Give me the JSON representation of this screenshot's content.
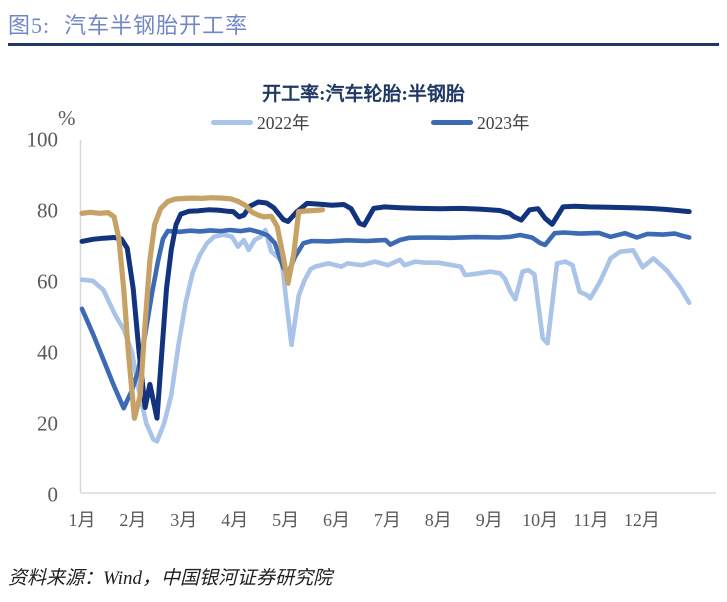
{
  "figure": {
    "label": "图5:",
    "title": "汽车半钢胎开工率"
  },
  "chart": {
    "title": "开工率:汽车轮胎:半钢胎"
  },
  "legend": [
    {
      "label": "2022年",
      "color": "#a9c4e8"
    },
    {
      "label": "2023年",
      "color": "#3c6ab5"
    }
  ],
  "source": "资料来源：Wind，中国银河证券研究院",
  "colors": {
    "figure_title": "#7287c6",
    "divider": "#1f3864",
    "chart_title": "#1f3864",
    "axis_line": "#d9d9d9",
    "axis_label": "#595959"
  },
  "chart_data": {
    "type": "line",
    "title": "开工率:汽车轮胎:半钢胎",
    "x_axis": {
      "categories": [
        "1月",
        "2月",
        "3月",
        "4月",
        "5月",
        "6月",
        "7月",
        "8月",
        "9月",
        "10月",
        "11月",
        "12月"
      ],
      "unit": "week-of-year"
    },
    "y_axis": {
      "min": 0,
      "max": 100,
      "ticks": [
        0,
        20,
        40,
        60,
        80,
        100
      ],
      "unit": "%"
    },
    "legend_position": "top",
    "grid": false,
    "series": [
      {
        "name": "2022年",
        "in_legend": true,
        "color": "#a9c4e8",
        "width": 4.6,
        "points": [
          [
            1,
            60.5
          ],
          [
            1.9,
            60.2
          ],
          [
            2.8,
            57.6
          ],
          [
            3.8,
            50.5
          ],
          [
            4.5,
            46.5
          ],
          [
            5.2,
            40
          ],
          [
            5.8,
            29
          ],
          [
            6.4,
            20
          ],
          [
            7.0,
            15.5
          ],
          [
            7.3,
            15.0
          ],
          [
            7.9,
            20
          ],
          [
            8.5,
            28
          ],
          [
            9.1,
            42
          ],
          [
            9.7,
            54
          ],
          [
            10.3,
            62.5
          ],
          [
            10.9,
            67.5
          ],
          [
            11.5,
            70.8
          ],
          [
            12.1,
            72.6
          ],
          [
            12.9,
            73.2
          ],
          [
            13.6,
            72.6
          ],
          [
            14.1,
            69.8
          ],
          [
            14.6,
            71.7
          ],
          [
            15.0,
            68.9
          ],
          [
            15.5,
            71.7
          ],
          [
            16.0,
            72.6
          ],
          [
            16.4,
            74.5
          ],
          [
            16.9,
            68.4
          ],
          [
            17.4,
            67.0
          ],
          [
            17.8,
            65.6
          ],
          [
            18.1,
            56.2
          ],
          [
            18.6,
            42.1
          ],
          [
            19.2,
            56
          ],
          [
            19.7,
            60.4
          ],
          [
            20.2,
            63.5
          ],
          [
            20.6,
            64.2
          ],
          [
            21.7,
            65.1
          ],
          [
            22.8,
            64.2
          ],
          [
            23.3,
            65.1
          ],
          [
            24.5,
            64.6
          ],
          [
            25.6,
            65.6
          ],
          [
            26.7,
            64.6
          ],
          [
            27.7,
            66.1
          ],
          [
            28.1,
            64.6
          ],
          [
            29.0,
            65.6
          ],
          [
            29.8,
            65.3
          ],
          [
            30.9,
            65.3
          ],
          [
            32.8,
            64.2
          ],
          [
            33.2,
            61.8
          ],
          [
            34.4,
            62.3
          ],
          [
            35.3,
            62.8
          ],
          [
            36.1,
            62.3
          ],
          [
            36.5,
            60.9
          ],
          [
            37.0,
            57.1
          ],
          [
            37.4,
            55.0
          ],
          [
            38.0,
            62.8
          ],
          [
            38.5,
            63.2
          ],
          [
            39.0,
            62
          ],
          [
            39.7,
            44.0
          ],
          [
            40.1,
            42.6
          ],
          [
            40.9,
            65.1
          ],
          [
            41.6,
            65.6
          ],
          [
            42.2,
            64.6
          ],
          [
            42.8,
            57.1
          ],
          [
            43.4,
            56.2
          ],
          [
            43.7,
            55.3
          ],
          [
            44.5,
            59.9
          ],
          [
            45.4,
            66.5
          ],
          [
            46.2,
            68.4
          ],
          [
            47.3,
            68.8
          ],
          [
            48.1,
            64.0
          ],
          [
            49.0,
            66.5
          ],
          [
            50.1,
            63.2
          ],
          [
            51.2,
            58.5
          ],
          [
            52.0,
            54.0
          ]
        ]
      },
      {
        "name": "2023年",
        "in_legend": true,
        "color": "#3c6ab5",
        "width": 4.6,
        "points": [
          [
            1,
            52.3
          ],
          [
            1.9,
            45.4
          ],
          [
            2.8,
            38
          ],
          [
            3.7,
            30.5
          ],
          [
            4.5,
            24.3
          ],
          [
            5.2,
            29.4
          ],
          [
            5.7,
            34.6
          ],
          [
            6.3,
            45
          ],
          [
            6.9,
            57
          ],
          [
            7.4,
            66
          ],
          [
            7.8,
            72
          ],
          [
            8.2,
            74.2
          ],
          [
            9.2,
            74.0
          ],
          [
            10.1,
            74.3
          ],
          [
            10.9,
            74.1
          ],
          [
            11.8,
            74.4
          ],
          [
            12.6,
            74.2
          ],
          [
            13.4,
            74.5
          ],
          [
            14.3,
            74.2
          ],
          [
            15.1,
            74.6
          ],
          [
            15.9,
            73.9
          ],
          [
            16.6,
            73.0
          ],
          [
            17.2,
            70.8
          ],
          [
            17.9,
            64
          ],
          [
            18.3,
            62.3
          ],
          [
            18.9,
            67
          ],
          [
            19.6,
            70.8
          ],
          [
            20.3,
            71.4
          ],
          [
            21.7,
            71.3
          ],
          [
            23.3,
            71.6
          ],
          [
            24.9,
            71.4
          ],
          [
            26.5,
            71.7
          ],
          [
            26.9,
            70.4
          ],
          [
            27.7,
            71.7
          ],
          [
            28.5,
            72.3
          ],
          [
            30,
            72.4
          ],
          [
            32,
            72.3
          ],
          [
            34,
            72.5
          ],
          [
            36,
            72.4
          ],
          [
            37.0,
            72.6
          ],
          [
            37.8,
            73.1
          ],
          [
            38.8,
            72.4
          ],
          [
            39.5,
            70.8
          ],
          [
            39.9,
            70.3
          ],
          [
            40.7,
            73.6
          ],
          [
            41.5,
            73.8
          ],
          [
            42.8,
            73.5
          ],
          [
            44.4,
            73.7
          ],
          [
            45.4,
            72.6
          ],
          [
            46.6,
            73.6
          ],
          [
            47.6,
            72.4
          ],
          [
            48.5,
            73.4
          ],
          [
            49.8,
            73.2
          ],
          [
            50.8,
            73.5
          ],
          [
            51.4,
            72.9
          ],
          [
            52.0,
            72.4
          ]
        ]
      },
      {
        "name": "dark-blue-series",
        "in_legend": false,
        "color": "#12337e",
        "width": 5,
        "points": [
          [
            1,
            71.3
          ],
          [
            1.9,
            71.9
          ],
          [
            2.8,
            72.2
          ],
          [
            3.7,
            72.4
          ],
          [
            4.3,
            72.0
          ],
          [
            4.8,
            69.4
          ],
          [
            5.3,
            58
          ],
          [
            5.8,
            40
          ],
          [
            6.3,
            24.5
          ],
          [
            6.7,
            31
          ],
          [
            7.3,
            21.5
          ],
          [
            7.7,
            40
          ],
          [
            8.1,
            58
          ],
          [
            8.5,
            69
          ],
          [
            8.9,
            76
          ],
          [
            9.3,
            79.0
          ],
          [
            10.0,
            79.8
          ],
          [
            10.7,
            79.9
          ],
          [
            11.6,
            80.2
          ],
          [
            12.4,
            80.1
          ],
          [
            13.2,
            79.8
          ],
          [
            13.7,
            79.7
          ],
          [
            14.2,
            78.2
          ],
          [
            14.6,
            78.7
          ],
          [
            15.1,
            81.2
          ],
          [
            15.8,
            82.4
          ],
          [
            16.5,
            82.1
          ],
          [
            17.1,
            80.8
          ],
          [
            17.9,
            77.5
          ],
          [
            18.3,
            76.9
          ],
          [
            19.0,
            79.5
          ],
          [
            19.9,
            82.0
          ],
          [
            20.9,
            81.8
          ],
          [
            22.0,
            81.5
          ],
          [
            23.0,
            81.7
          ],
          [
            23.6,
            80.5
          ],
          [
            24.3,
            76.4
          ],
          [
            24.7,
            75.9
          ],
          [
            25.5,
            80.6
          ],
          [
            26.4,
            81.0
          ],
          [
            27.7,
            80.8
          ],
          [
            29.4,
            80.6
          ],
          [
            31.1,
            80.5
          ],
          [
            32.8,
            80.6
          ],
          [
            34.4,
            80.4
          ],
          [
            36.1,
            80.0
          ],
          [
            36.9,
            79.2
          ],
          [
            37.3,
            78.2
          ],
          [
            37.9,
            77.3
          ],
          [
            38.6,
            80.2
          ],
          [
            39.3,
            80.5
          ],
          [
            39.9,
            77.8
          ],
          [
            40.5,
            76.1
          ],
          [
            41.4,
            81.0
          ],
          [
            42.4,
            81.2
          ],
          [
            43.6,
            81.0
          ],
          [
            45.3,
            80.9
          ],
          [
            47.0,
            80.8
          ],
          [
            48.6,
            80.6
          ],
          [
            50.0,
            80.3
          ],
          [
            51.0,
            80.0
          ],
          [
            52.0,
            79.7
          ]
        ]
      },
      {
        "name": "tan-series",
        "in_legend": false,
        "color": "#c7a266",
        "width": 5.2,
        "points": [
          [
            1,
            79.2
          ],
          [
            1.7,
            79.5
          ],
          [
            2.5,
            79.2
          ],
          [
            3.2,
            79.4
          ],
          [
            3.7,
            78.2
          ],
          [
            4.1,
            72
          ],
          [
            4.5,
            58
          ],
          [
            4.9,
            40
          ],
          [
            5.4,
            21.5
          ],
          [
            5.9,
            28
          ],
          [
            6.3,
            48
          ],
          [
            6.7,
            66
          ],
          [
            7.1,
            76
          ],
          [
            7.6,
            80.5
          ],
          [
            8.2,
            82.5
          ],
          [
            8.8,
            83.2
          ],
          [
            9.6,
            83.4
          ],
          [
            10.2,
            83.5
          ],
          [
            11.1,
            83.4
          ],
          [
            11.9,
            83.6
          ],
          [
            12.8,
            83.5
          ],
          [
            13.5,
            83.3
          ],
          [
            14.1,
            82.6
          ],
          [
            14.7,
            81.5
          ],
          [
            15.3,
            79.5
          ],
          [
            15.8,
            78.7
          ],
          [
            16.3,
            78.2
          ],
          [
            16.9,
            78.4
          ],
          [
            17.4,
            75.5
          ],
          [
            17.9,
            67
          ],
          [
            18.3,
            59.5
          ],
          [
            18.8,
            68
          ],
          [
            19.2,
            79.7
          ],
          [
            19.9,
            79.9
          ],
          [
            20.6,
            80.0
          ],
          [
            21.2,
            80.2
          ]
        ]
      }
    ]
  }
}
